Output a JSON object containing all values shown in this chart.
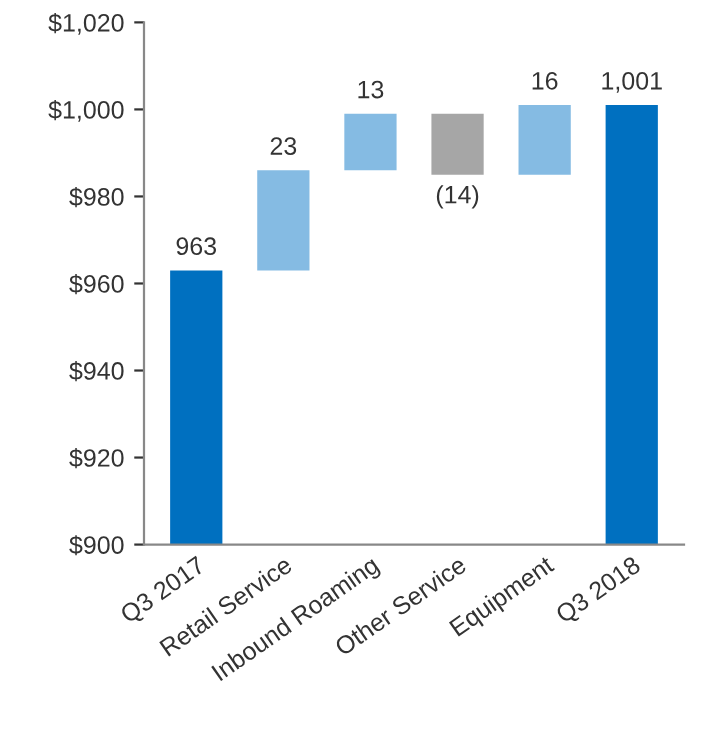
{
  "chart_data": {
    "type": "bar",
    "categories": [
      "Q3 2017",
      "Retail Service",
      "Inbound Roaming",
      "Other Service",
      "Equipment",
      "Q3 2018"
    ],
    "values": [
      963,
      23,
      13,
      -14,
      16,
      1001
    ],
    "base": [
      null,
      963,
      986,
      999,
      985,
      null
    ],
    "colors": [
      "#0070c0",
      "#85bbe3",
      "#85bbe3",
      "#a6a6a6",
      "#85bbe3",
      "#0070c0"
    ],
    "value_labels": [
      "963",
      "23",
      "13",
      "(14)",
      "16",
      "1,001"
    ],
    "ylim": [
      900,
      1020
    ],
    "yticks": [
      {
        "value": 900,
        "label": "$900"
      },
      {
        "value": 920,
        "label": "$920"
      },
      {
        "value": 940,
        "label": "$940"
      },
      {
        "value": 960,
        "label": "$960"
      },
      {
        "value": 980,
        "label": "$980"
      },
      {
        "value": 1000,
        "label": "$1,000"
      },
      {
        "value": 1020,
        "label": "$1,020"
      }
    ],
    "grid": false,
    "legend": false
  }
}
